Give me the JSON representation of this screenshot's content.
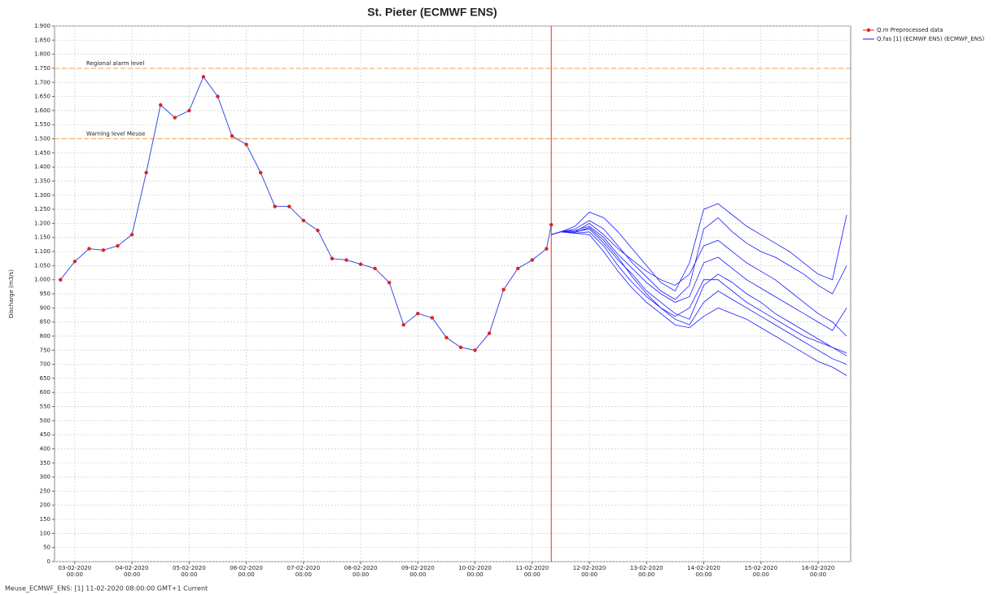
{
  "chart_data": {
    "type": "line",
    "title": "St. Pieter (ECMWF ENS)",
    "y_label": "Discharge (m3/s)",
    "footer": "Meuse_ECMWF_ENS: [1] 11-02-2020 08:00:00 GMT+1 Current",
    "xlim": [
      "2020-02-02T15:30",
      "2020-02-16T13:40"
    ],
    "ylim": [
      0,
      1900
    ],
    "grid": true,
    "legend": "top-right",
    "current_time": "2020-02-11T08:00",
    "current_time_color": "#ff2020",
    "xticks": [
      {
        "value": "2020-02-03T00:00",
        "label": [
          "03-02-2020",
          "00:00"
        ]
      },
      {
        "value": "2020-02-04T00:00",
        "label": [
          "04-02-2020",
          "00:00"
        ]
      },
      {
        "value": "2020-02-05T00:00",
        "label": [
          "05-02-2020",
          "00:00"
        ]
      },
      {
        "value": "2020-02-06T00:00",
        "label": [
          "06-02-2020",
          "00:00"
        ]
      },
      {
        "value": "2020-02-07T00:00",
        "label": [
          "07-02-2020",
          "00:00"
        ]
      },
      {
        "value": "2020-02-08T00:00",
        "label": [
          "08-02-2020",
          "00:00"
        ]
      },
      {
        "value": "2020-02-09T00:00",
        "label": [
          "09-02-2020",
          "00:00"
        ]
      },
      {
        "value": "2020-02-10T00:00",
        "label": [
          "10-02-2020",
          "00:00"
        ]
      },
      {
        "value": "2020-02-11T00:00",
        "label": [
          "11-02-2020",
          "00:00"
        ]
      },
      {
        "value": "2020-02-12T00:00",
        "label": [
          "12-02-2020",
          "00:00"
        ]
      },
      {
        "value": "2020-02-13T00:00",
        "label": [
          "13-02-2020",
          "00:00"
        ]
      },
      {
        "value": "2020-02-14T00:00",
        "label": [
          "14-02-2020",
          "00:00"
        ]
      },
      {
        "value": "2020-02-15T00:00",
        "label": [
          "15-02-2020",
          "00:00"
        ]
      },
      {
        "value": "2020-02-16T00:00",
        "label": [
          "16-02-2020",
          "00:00"
        ]
      }
    ],
    "yticks": [
      0,
      50,
      100,
      150,
      200,
      250,
      300,
      350,
      400,
      450,
      500,
      550,
      600,
      650,
      700,
      750,
      800,
      850,
      900,
      950,
      {
        "value": 1000,
        "label": "1.000"
      },
      {
        "value": 1050,
        "label": "1.050"
      },
      {
        "value": 1100,
        "label": "1.100"
      },
      {
        "value": 1150,
        "label": "1.150"
      },
      {
        "value": 1200,
        "label": "1.200"
      },
      {
        "value": 1250,
        "label": "1.250"
      },
      {
        "value": 1300,
        "label": "1.300"
      },
      {
        "value": 1350,
        "label": "1.350"
      },
      {
        "value": 1400,
        "label": "1.400"
      },
      {
        "value": 1450,
        "label": "1.450"
      },
      {
        "value": 1500,
        "label": "1.500"
      },
      {
        "value": 1550,
        "label": "1.550"
      },
      {
        "value": 1600,
        "label": "1.600"
      },
      {
        "value": 1650,
        "label": "1.650"
      },
      {
        "value": 1700,
        "label": "1.700"
      },
      {
        "value": 1750,
        "label": "1.750"
      },
      {
        "value": 1800,
        "label": "1.800"
      },
      {
        "value": 1850,
        "label": "1.850"
      },
      {
        "value": 1900,
        "label": "1.900"
      }
    ],
    "thresholds": [
      {
        "label": "Regional alarm level",
        "value": 1750,
        "color": "#f0a050"
      },
      {
        "label": "Warning level Meuse",
        "value": 1500,
        "color": "#f0a050"
      }
    ],
    "series": [
      {
        "name": "Q.m Preprocessed data",
        "color": "#e02020",
        "line_color": "#3a4fe0",
        "x": [
          "2020-02-02T18:00",
          "2020-02-03T00:00",
          "2020-02-03T06:00",
          "2020-02-03T12:00",
          "2020-02-03T18:00",
          "2020-02-04T00:00",
          "2020-02-04T06:00",
          "2020-02-04T12:00",
          "2020-02-04T18:00",
          "2020-02-05T00:00",
          "2020-02-05T06:00",
          "2020-02-05T12:00",
          "2020-02-05T18:00",
          "2020-02-06T00:00",
          "2020-02-06T06:00",
          "2020-02-06T12:00",
          "2020-02-06T18:00",
          "2020-02-07T00:00",
          "2020-02-07T06:00",
          "2020-02-07T12:00",
          "2020-02-07T18:00",
          "2020-02-08T00:00",
          "2020-02-08T06:00",
          "2020-02-08T12:00",
          "2020-02-08T18:00",
          "2020-02-09T00:00",
          "2020-02-09T06:00",
          "2020-02-09T12:00",
          "2020-02-09T18:00",
          "2020-02-10T00:00",
          "2020-02-10T06:00",
          "2020-02-10T12:00",
          "2020-02-10T18:00",
          "2020-02-11T00:00",
          "2020-02-11T06:00",
          "2020-02-11T08:00"
        ],
        "values": [
          1000,
          1065,
          1110,
          1105,
          1120,
          1160,
          1380,
          1620,
          1575,
          1600,
          1720,
          1650,
          1510,
          1480,
          1380,
          1260,
          1260,
          1210,
          1175,
          1075,
          1070,
          1055,
          1040,
          990,
          840,
          880,
          865,
          795,
          760,
          750,
          810,
          965,
          1040,
          1070,
          1110,
          1195
        ]
      },
      {
        "name": "Q.fas [1] (ECMWF ENS)  (ECMWF_ENS)",
        "color": "#1a1aff",
        "x": [
          "2020-02-11T08:00",
          "2020-02-11T12:00",
          "2020-02-11T18:00",
          "2020-02-12T00:00",
          "2020-02-12T06:00",
          "2020-02-12T12:00",
          "2020-02-12T18:00",
          "2020-02-13T00:00",
          "2020-02-13T06:00",
          "2020-02-13T12:00",
          "2020-02-13T18:00",
          "2020-02-14T00:00",
          "2020-02-14T06:00",
          "2020-02-14T12:00",
          "2020-02-14T18:00",
          "2020-02-15T00:00",
          "2020-02-15T06:00",
          "2020-02-15T12:00",
          "2020-02-15T18:00",
          "2020-02-16T00:00",
          "2020-02-16T06:00",
          "2020-02-16T12:00"
        ],
        "members": [
          [
            1160,
            1170,
            1190,
            1240,
            1220,
            1170,
            1110,
            1050,
            990,
            960,
            1060,
            1250,
            1270,
            1230,
            1190,
            1160,
            1130,
            1100,
            1060,
            1020,
            1000,
            1230
          ],
          [
            1160,
            1170,
            1180,
            1210,
            1180,
            1120,
            1060,
            1010,
            960,
            930,
            980,
            1180,
            1220,
            1170,
            1130,
            1100,
            1080,
            1050,
            1020,
            980,
            950,
            1050
          ],
          [
            1160,
            1170,
            1175,
            1190,
            1150,
            1090,
            1040,
            990,
            950,
            920,
            940,
            1060,
            1080,
            1040,
            1000,
            970,
            940,
            910,
            880,
            850,
            820,
            900
          ],
          [
            1160,
            1170,
            1170,
            1180,
            1130,
            1070,
            1020,
            960,
            920,
            880,
            860,
            980,
            1020,
            990,
            950,
            920,
            880,
            850,
            820,
            790,
            760,
            730
          ],
          [
            1160,
            1170,
            1165,
            1170,
            1120,
            1050,
            990,
            940,
            900,
            860,
            840,
            920,
            960,
            930,
            900,
            870,
            840,
            810,
            780,
            750,
            720,
            700
          ],
          [
            1160,
            1170,
            1165,
            1160,
            1100,
            1030,
            970,
            920,
            880,
            840,
            830,
            870,
            900,
            880,
            860,
            830,
            800,
            770,
            740,
            710,
            690,
            660
          ],
          [
            1160,
            1170,
            1170,
            1200,
            1160,
            1110,
            1070,
            1030,
            1000,
            980,
            1020,
            1120,
            1140,
            1100,
            1060,
            1030,
            1000,
            960,
            920,
            880,
            850,
            800
          ],
          [
            1160,
            1170,
            1168,
            1185,
            1140,
            1080,
            1010,
            950,
            900,
            870,
            900,
            1000,
            1000,
            960,
            920,
            890,
            860,
            830,
            800,
            780,
            760,
            740
          ]
        ]
      }
    ]
  }
}
